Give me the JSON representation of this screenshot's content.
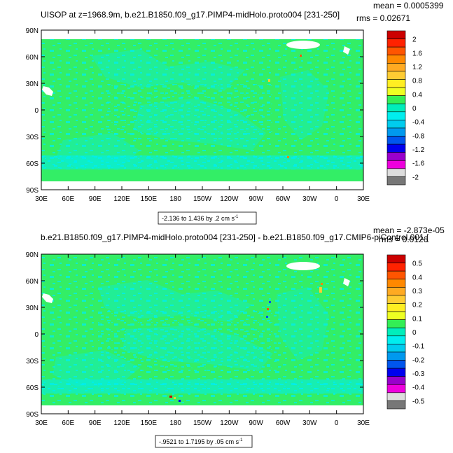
{
  "chart_data": [
    {
      "type": "heatmap",
      "title": "UISOP at z=1968.9m, b.e21.B1850.f09_g17.PIMP4-midHolo.proto004 [231-250]",
      "mean_label": "mean = 0.0005399",
      "rms_label": "rms = 0.02671",
      "contour_info": "-2.136 to 1.436 by .2 cm s",
      "contour_info_sup": "-1",
      "x_ticks": [
        "30E",
        "60E",
        "90E",
        "120E",
        "150E",
        "180",
        "150W",
        "120W",
        "90W",
        "60W",
        "30W",
        "0",
        "30E"
      ],
      "y_ticks": [
        "90N",
        "60N",
        "30N",
        "0",
        "30S",
        "60S",
        "90S"
      ],
      "xlim": [
        30,
        390
      ],
      "ylim": [
        -90,
        90
      ],
      "colorbar": {
        "labels": [
          "2",
          "1.6",
          "1.2",
          "0.8",
          "0.4",
          "0",
          "-0.4",
          "-0.8",
          "-1.2",
          "-1.6",
          "-2"
        ],
        "colors": [
          "#cc0000",
          "#ff2200",
          "#ff5500",
          "#ff8800",
          "#ffaa22",
          "#ffcc33",
          "#ffee22",
          "#eeff22",
          "#33ee55",
          "#00eebb",
          "#00eeee",
          "#00ccee",
          "#0099ee",
          "#0055ee",
          "#0000ee",
          "#9900cc",
          "#ee00dd",
          "#dddddd",
          "#777777"
        ]
      }
    },
    {
      "type": "heatmap",
      "title": "b.e21.B1850.f09_g17.PIMP4-midHolo.proto004 [231-250] - b.e21.B1850.f09_g17.CMIP6-piControl.001 [",
      "mean_label": "mean = -2.873e-05",
      "rms_label": "rms = 0.0126",
      "contour_info": "-.9521 to 1.7195 by .05 cm s",
      "contour_info_sup": "-1",
      "x_ticks": [
        "30E",
        "60E",
        "90E",
        "120E",
        "150E",
        "180",
        "150W",
        "120W",
        "90W",
        "60W",
        "30W",
        "0",
        "30E"
      ],
      "y_ticks": [
        "90N",
        "60N",
        "30N",
        "0",
        "30S",
        "60S",
        "90S"
      ],
      "xlim": [
        30,
        390
      ],
      "ylim": [
        -90,
        90
      ],
      "colorbar": {
        "labels": [
          "0.5",
          "0.4",
          "0.3",
          "0.2",
          "0.1",
          "0",
          "-0.1",
          "-0.2",
          "-0.3",
          "-0.4",
          "-0.5"
        ],
        "colors": [
          "#cc0000",
          "#ff2200",
          "#ff5500",
          "#ff8800",
          "#ffaa22",
          "#ffcc33",
          "#ffee22",
          "#eeff22",
          "#33ee55",
          "#00eebb",
          "#00eeee",
          "#00ccee",
          "#0099ee",
          "#0055ee",
          "#0000ee",
          "#9900cc",
          "#ee00dd",
          "#dddddd",
          "#777777"
        ]
      }
    }
  ]
}
